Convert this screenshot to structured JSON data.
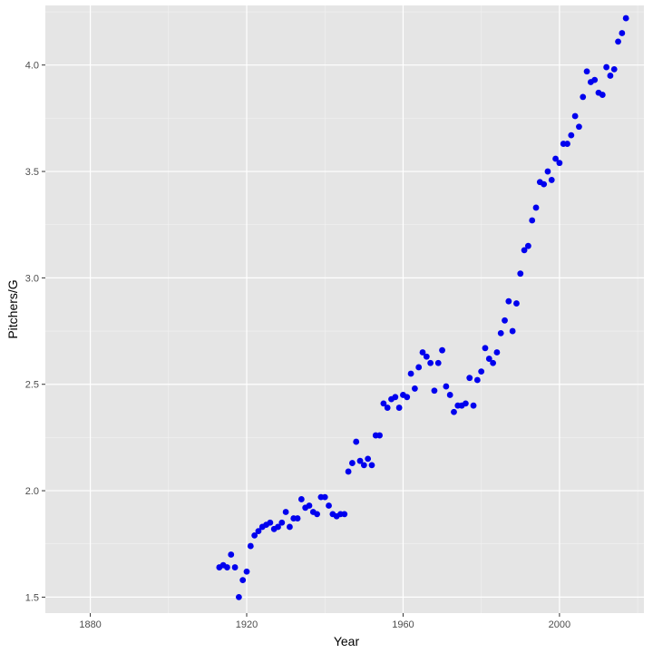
{
  "chart_data": {
    "type": "scatter",
    "title": "",
    "xlabel": "Year",
    "ylabel": "Pitchers/G",
    "xlim": [
      1868.5,
      2021.6
    ],
    "ylim": [
      1.425,
      4.28
    ],
    "x_ticks": [
      1880,
      1920,
      1960,
      2000
    ],
    "x_minor_ticks": [
      1900,
      1940,
      1980,
      2020
    ],
    "y_ticks": [
      1.5,
      2.0,
      2.5,
      3.0,
      3.5,
      4.0
    ],
    "y_minor_ticks": [
      1.75,
      2.25,
      2.75,
      3.25,
      3.75,
      4.25
    ],
    "grid": true,
    "colors": {
      "panel_background": "#e5e5e5",
      "grid_major": "#ffffff",
      "grid_minor": "#f2f2f2",
      "point": "#0000ee"
    },
    "series": [
      {
        "points": [
          [
            1913,
            1.64
          ],
          [
            1914,
            1.65
          ],
          [
            1915,
            1.64
          ],
          [
            1916,
            1.7
          ],
          [
            1917,
            1.64
          ],
          [
            1918,
            1.5
          ],
          [
            1919,
            1.58
          ],
          [
            1920,
            1.62
          ],
          [
            1921,
            1.74
          ],
          [
            1922,
            1.79
          ],
          [
            1923,
            1.81
          ],
          [
            1924,
            1.83
          ],
          [
            1925,
            1.84
          ],
          [
            1926,
            1.85
          ],
          [
            1927,
            1.82
          ],
          [
            1928,
            1.83
          ],
          [
            1929,
            1.85
          ],
          [
            1930,
            1.9
          ],
          [
            1931,
            1.83
          ],
          [
            1932,
            1.87
          ],
          [
            1933,
            1.87
          ],
          [
            1934,
            1.96
          ],
          [
            1935,
            1.92
          ],
          [
            1936,
            1.93
          ],
          [
            1937,
            1.9
          ],
          [
            1938,
            1.89
          ],
          [
            1939,
            1.97
          ],
          [
            1940,
            1.97
          ],
          [
            1941,
            1.93
          ],
          [
            1942,
            1.89
          ],
          [
            1943,
            1.88
          ],
          [
            1944,
            1.89
          ],
          [
            1945,
            1.89
          ],
          [
            1946,
            2.09
          ],
          [
            1947,
            2.13
          ],
          [
            1948,
            2.23
          ],
          [
            1949,
            2.14
          ],
          [
            1950,
            2.12
          ],
          [
            1951,
            2.15
          ],
          [
            1952,
            2.12
          ],
          [
            1953,
            2.26
          ],
          [
            1954,
            2.26
          ],
          [
            1955,
            2.41
          ],
          [
            1956,
            2.39
          ],
          [
            1957,
            2.43
          ],
          [
            1958,
            2.44
          ],
          [
            1959,
            2.39
          ],
          [
            1960,
            2.45
          ],
          [
            1961,
            2.44
          ],
          [
            1962,
            2.55
          ],
          [
            1963,
            2.48
          ],
          [
            1964,
            2.58
          ],
          [
            1965,
            2.65
          ],
          [
            1966,
            2.63
          ],
          [
            1967,
            2.6
          ],
          [
            1968,
            2.47
          ],
          [
            1969,
            2.6
          ],
          [
            1970,
            2.66
          ],
          [
            1971,
            2.49
          ],
          [
            1972,
            2.45
          ],
          [
            1973,
            2.37
          ],
          [
            1974,
            2.4
          ],
          [
            1975,
            2.4
          ],
          [
            1976,
            2.41
          ],
          [
            1977,
            2.53
          ],
          [
            1978,
            2.4
          ],
          [
            1979,
            2.52
          ],
          [
            1980,
            2.56
          ],
          [
            1981,
            2.67
          ],
          [
            1982,
            2.62
          ],
          [
            1983,
            2.6
          ],
          [
            1984,
            2.65
          ],
          [
            1985,
            2.74
          ],
          [
            1986,
            2.8
          ],
          [
            1987,
            2.89
          ],
          [
            1988,
            2.75
          ],
          [
            1989,
            2.88
          ],
          [
            1990,
            3.02
          ],
          [
            1991,
            3.13
          ],
          [
            1992,
            3.15
          ],
          [
            1993,
            3.27
          ],
          [
            1994,
            3.33
          ],
          [
            1995,
            3.45
          ],
          [
            1996,
            3.44
          ],
          [
            1997,
            3.5
          ],
          [
            1998,
            3.46
          ],
          [
            1999,
            3.56
          ],
          [
            2000,
            3.54
          ],
          [
            2001,
            3.63
          ],
          [
            2002,
            3.63
          ],
          [
            2003,
            3.67
          ],
          [
            2004,
            3.76
          ],
          [
            2005,
            3.71
          ],
          [
            2006,
            3.85
          ],
          [
            2007,
            3.97
          ],
          [
            2008,
            3.92
          ],
          [
            2009,
            3.93
          ],
          [
            2010,
            3.87
          ],
          [
            2011,
            3.86
          ],
          [
            2012,
            3.99
          ],
          [
            2013,
            3.95
          ],
          [
            2014,
            3.98
          ],
          [
            2015,
            4.11
          ],
          [
            2016,
            4.15
          ],
          [
            2017,
            4.22
          ]
        ]
      }
    ]
  }
}
